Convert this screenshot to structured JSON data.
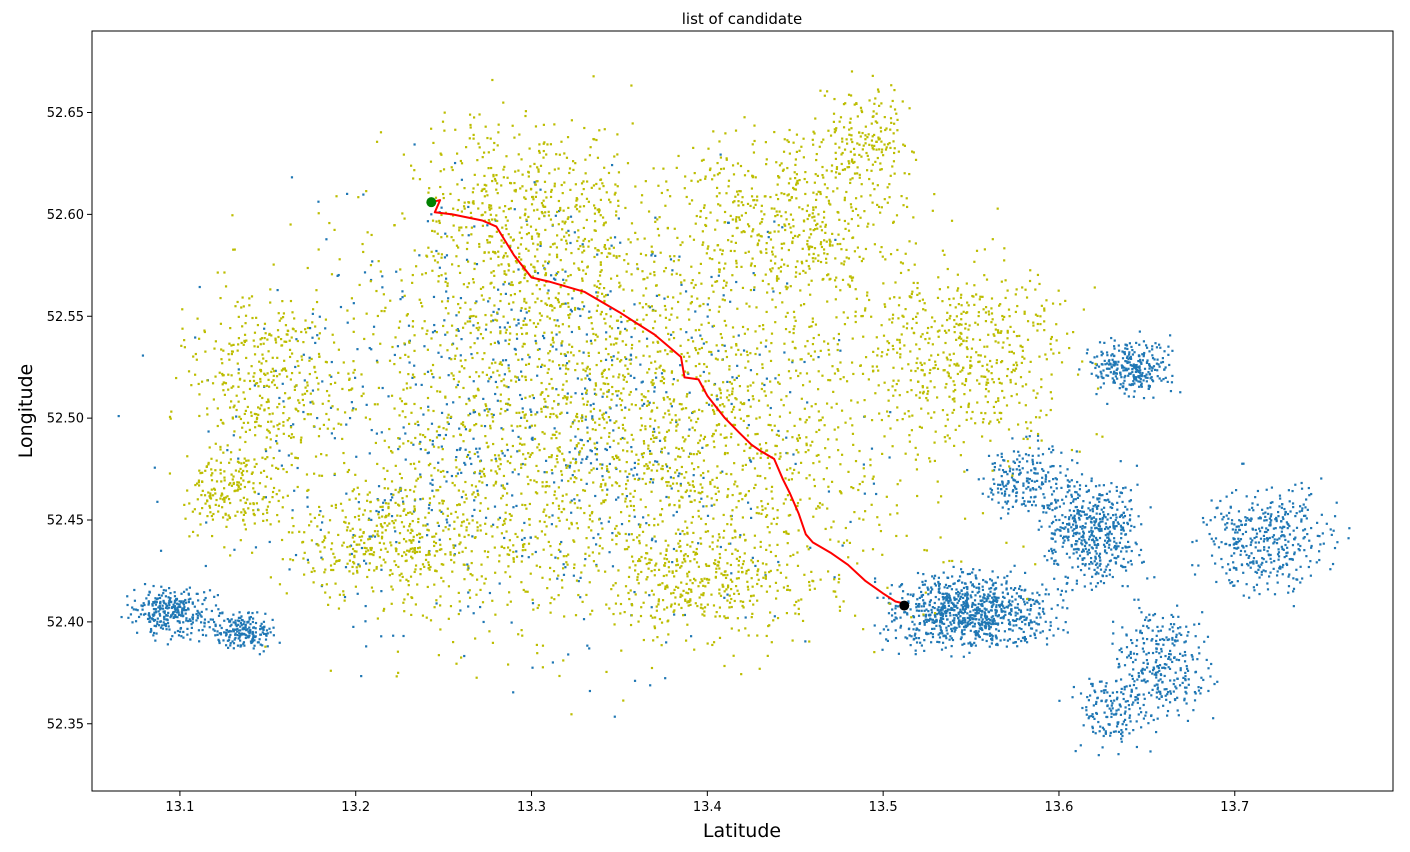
{
  "chart_data": {
    "type": "scatter",
    "title": "list of candidate",
    "xlabel": "Latitude",
    "ylabel": "Longitude",
    "xlim": [
      13.05,
      13.79
    ],
    "ylim": [
      52.317,
      52.69
    ],
    "x_ticks": [
      13.1,
      13.2,
      13.3,
      13.4,
      13.5,
      13.6,
      13.7
    ],
    "x_tick_labels": [
      "13.1",
      "13.2",
      "13.3",
      "13.4",
      "13.5",
      "13.6",
      "13.7"
    ],
    "y_ticks": [
      52.35,
      52.4,
      52.45,
      52.5,
      52.55,
      52.6,
      52.65
    ],
    "y_tick_labels": [
      "52.35",
      "52.40",
      "52.45",
      "52.50",
      "52.55",
      "52.60",
      "52.65"
    ],
    "grid": false,
    "colors": {
      "all_nodes": "#1f77b4",
      "candidates": "#bcbd00",
      "route": "#ff0000",
      "start": "#008000",
      "end": "#000000"
    },
    "series": [
      {
        "role": "all_nodes",
        "marker": "dot",
        "cluster_regions": [
          [
            13.095,
            52.405,
            0.025,
            0.013,
            300
          ],
          [
            13.135,
            52.395,
            0.02,
            0.01,
            200
          ],
          [
            13.55,
            52.405,
            0.05,
            0.02,
            900
          ],
          [
            13.62,
            52.445,
            0.03,
            0.03,
            500
          ],
          [
            13.64,
            52.525,
            0.025,
            0.015,
            300
          ],
          [
            13.72,
            52.44,
            0.04,
            0.03,
            400
          ],
          [
            13.66,
            52.38,
            0.03,
            0.03,
            300
          ],
          [
            13.63,
            52.355,
            0.025,
            0.02,
            150
          ],
          [
            13.58,
            52.47,
            0.03,
            0.02,
            200
          ],
          [
            13.3,
            52.5,
            0.19,
            0.12,
            800
          ]
        ]
      },
      {
        "role": "candidates",
        "marker": "dot",
        "cluster_regions": [
          [
            13.35,
            52.5,
            0.2,
            0.12,
            2600
          ],
          [
            13.3,
            52.6,
            0.07,
            0.06,
            500
          ],
          [
            13.45,
            52.6,
            0.07,
            0.05,
            500
          ],
          [
            13.15,
            52.52,
            0.05,
            0.05,
            350
          ],
          [
            13.13,
            52.465,
            0.03,
            0.025,
            200
          ],
          [
            13.55,
            52.53,
            0.07,
            0.05,
            500
          ],
          [
            13.22,
            52.44,
            0.07,
            0.03,
            350
          ],
          [
            13.4,
            52.42,
            0.06,
            0.03,
            300
          ],
          [
            13.49,
            52.64,
            0.03,
            0.03,
            150
          ]
        ]
      },
      {
        "role": "route",
        "marker": "line",
        "points": [
          [
            13.243,
            52.606
          ],
          [
            13.248,
            52.607
          ],
          [
            13.245,
            52.601
          ],
          [
            13.255,
            52.6
          ],
          [
            13.272,
            52.597
          ],
          [
            13.28,
            52.594
          ],
          [
            13.29,
            52.58
          ],
          [
            13.3,
            52.569
          ],
          [
            13.31,
            52.567
          ],
          [
            13.33,
            52.562
          ],
          [
            13.35,
            52.552
          ],
          [
            13.37,
            52.541
          ],
          [
            13.385,
            52.53
          ],
          [
            13.387,
            52.52
          ],
          [
            13.395,
            52.519
          ],
          [
            13.4,
            52.511
          ],
          [
            13.41,
            52.5
          ],
          [
            13.418,
            52.493
          ],
          [
            13.425,
            52.487
          ],
          [
            13.43,
            52.484
          ],
          [
            13.438,
            52.48
          ],
          [
            13.443,
            52.47
          ],
          [
            13.447,
            52.463
          ],
          [
            13.452,
            52.453
          ],
          [
            13.456,
            52.443
          ],
          [
            13.46,
            52.439
          ],
          [
            13.47,
            52.434
          ],
          [
            13.48,
            52.428
          ],
          [
            13.49,
            52.42
          ],
          [
            13.5,
            52.414
          ],
          [
            13.507,
            52.41
          ],
          [
            13.512,
            52.409
          ]
        ]
      },
      {
        "role": "start",
        "marker": "circle",
        "points": [
          [
            13.243,
            52.606
          ]
        ]
      },
      {
        "role": "end",
        "marker": "circle",
        "points": [
          [
            13.512,
            52.408
          ]
        ]
      }
    ]
  }
}
